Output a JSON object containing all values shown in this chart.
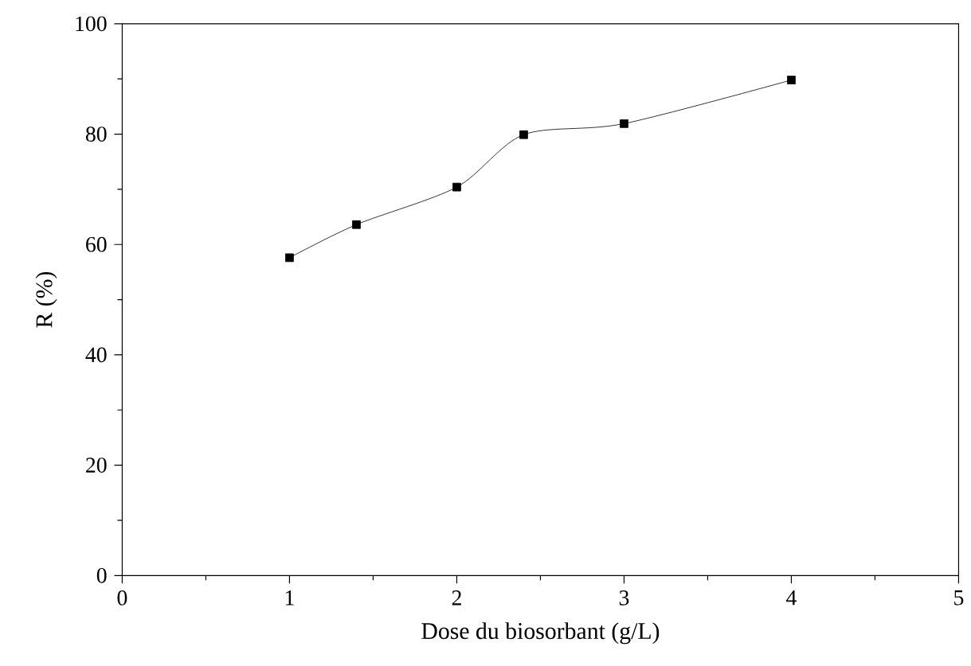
{
  "chart_data": {
    "type": "line",
    "xlabel": "Dose du biosorbant (g/L)",
    "ylabel": "R (%)",
    "x": [
      1,
      1.4,
      2,
      2.4,
      3,
      4
    ],
    "series": [
      {
        "color": "#000000",
        "values": [
          57.6,
          63.6,
          70.4,
          79.9,
          81.9,
          89.8
        ]
      }
    ],
    "xlim": [
      0,
      5
    ],
    "ylim": [
      0,
      100
    ],
    "xticks": [
      0,
      1,
      2,
      3,
      4,
      5
    ],
    "yticks": [
      0,
      20,
      40,
      60,
      80,
      100
    ],
    "marker": "square",
    "line_style": "solid"
  }
}
